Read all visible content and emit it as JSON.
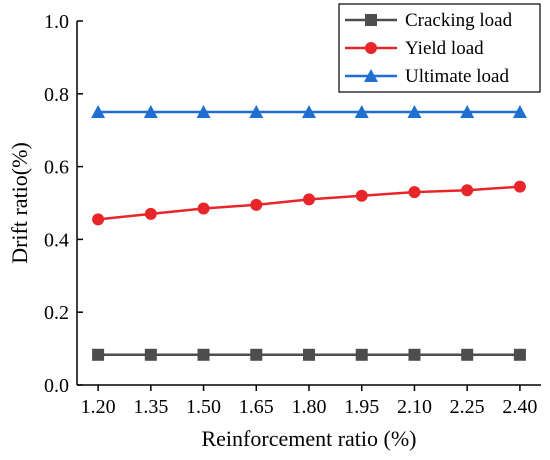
{
  "chart_data": {
    "type": "line",
    "title": "",
    "xlabel": "Reinforcement ratio (%)",
    "ylabel": "Drift ratio(%)",
    "x": [
      1.2,
      1.35,
      1.5,
      1.65,
      1.8,
      1.95,
      2.1,
      2.25,
      2.4
    ],
    "x_tick_labels": [
      "1.20",
      "1.35",
      "1.50",
      "1.65",
      "1.80",
      "1.95",
      "2.10",
      "2.25",
      "2.40"
    ],
    "xlim": [
      1.14,
      2.46
    ],
    "ylim": [
      0.0,
      1.0
    ],
    "y_ticks": [
      0.0,
      0.2,
      0.4,
      0.6,
      0.8,
      1.0
    ],
    "y_tick_labels": [
      "0.0",
      "0.2",
      "0.4",
      "0.6",
      "0.8",
      "1.0"
    ],
    "grid": false,
    "legend_position": "top-right",
    "series": [
      {
        "name": "Cracking load",
        "color": "#4d4d4d",
        "marker": "square",
        "values": [
          0.083,
          0.083,
          0.083,
          0.083,
          0.083,
          0.083,
          0.083,
          0.083,
          0.083
        ]
      },
      {
        "name": "Yield load",
        "color": "#e8262a",
        "marker": "circle",
        "values": [
          0.455,
          0.47,
          0.485,
          0.495,
          0.51,
          0.52,
          0.53,
          0.535,
          0.545
        ]
      },
      {
        "name": "Ultimate load",
        "color": "#1f6fd0",
        "marker": "triangle",
        "values": [
          0.75,
          0.75,
          0.75,
          0.75,
          0.75,
          0.75,
          0.75,
          0.75,
          0.75
        ]
      }
    ]
  }
}
